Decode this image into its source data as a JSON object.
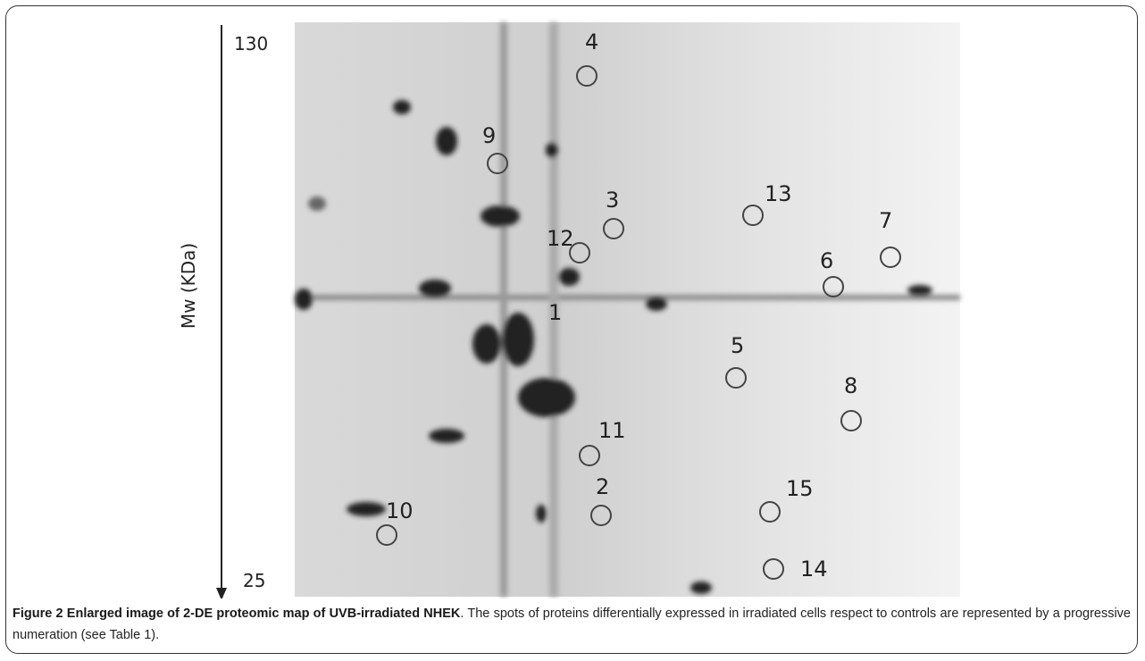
{
  "figure": {
    "axis": {
      "top": "130",
      "bottom": "25",
      "title": "Mw (KDa)"
    },
    "spots": [
      {
        "label": "4"
      },
      {
        "label": "9"
      },
      {
        "label": "3"
      },
      {
        "label": "12"
      },
      {
        "label": "13"
      },
      {
        "label": "7"
      },
      {
        "label": "6"
      },
      {
        "label": "1"
      },
      {
        "label": "5"
      },
      {
        "label": "8"
      },
      {
        "label": "11"
      },
      {
        "label": "2"
      },
      {
        "label": "15"
      },
      {
        "label": "10"
      },
      {
        "label": "14"
      }
    ],
    "caption": {
      "title": "Figure 2 Enlarged image of 2-DE proteomic map of UVB-irradiated NHEK",
      "text": ". The spots of proteins differentially expressed in irradiated cells respect to controls are represented by a progressive numeration (see Table 1)."
    }
  }
}
